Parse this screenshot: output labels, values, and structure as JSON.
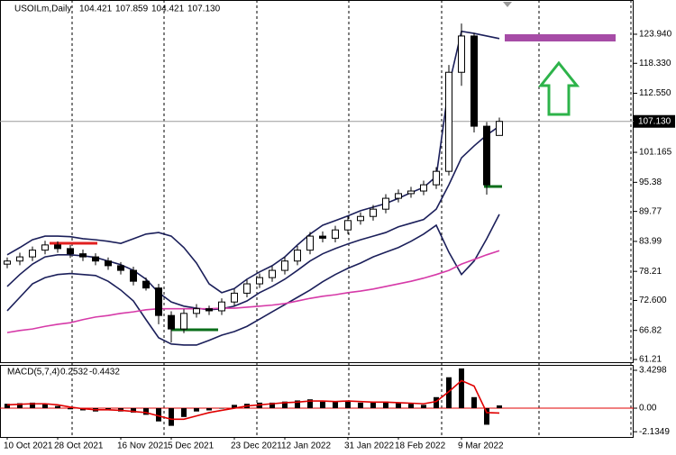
{
  "chart_data": [
    {
      "type": "candlestick",
      "title": "USOILm,Daily",
      "header_values": [
        104.421,
        107.859,
        104.421,
        {
          "value": 107.13,
          "label": "107.130"
        }
      ],
      "categories": [
        "10 Oct 2021",
        null,
        null,
        null,
        "28 Oct 2021",
        null,
        null,
        null,
        null,
        "16 Nov 2021",
        null,
        null,
        null,
        "5 Dec 2021",
        null,
        null,
        null,
        null,
        "23 Dec 2021",
        null,
        null,
        null,
        "12 Jan 2022",
        null,
        null,
        null,
        null,
        "31 Jan 2022",
        null,
        null,
        null,
        "18 Feb 2022",
        null,
        null,
        null,
        null,
        "9 Mar 2022",
        null,
        null,
        null
      ],
      "open": [
        79.6,
        80.2,
        81.0,
        82.3,
        83.3,
        82.6,
        81.6,
        81.0,
        80.2,
        79.3,
        78.4,
        76.3,
        75.0,
        69.7,
        67.1,
        70.1,
        71.0,
        70.6,
        72.3,
        74.0,
        75.8,
        77.0,
        78.4,
        80.2,
        82.3,
        85.0,
        84.6,
        86.2,
        88.0,
        88.8,
        90.2,
        92.3,
        93.2,
        93.7,
        94.9,
        97.5,
        116.6,
        123.6,
        106.2,
        104.421
      ],
      "high": [
        80.9,
        81.8,
        83.0,
        84.1,
        84.0,
        83.3,
        82.4,
        81.7,
        80.9,
        80.0,
        79.1,
        77.0,
        75.8,
        70.5,
        70.9,
        71.9,
        71.6,
        73.0,
        74.8,
        76.6,
        77.8,
        79.2,
        81.0,
        83.1,
        85.8,
        85.9,
        87.0,
        88.8,
        89.6,
        91.0,
        93.1,
        94.0,
        94.5,
        95.7,
        98.3,
        118.0,
        126.0,
        124.2,
        107.0,
        107.859
      ],
      "low": [
        78.8,
        79.4,
        80.2,
        81.5,
        81.8,
        80.8,
        80.2,
        79.4,
        78.5,
        77.6,
        75.5,
        74.5,
        68.0,
        64.5,
        66.3,
        69.3,
        69.8,
        69.8,
        71.5,
        73.2,
        75.0,
        76.2,
        77.6,
        79.4,
        81.5,
        83.8,
        83.8,
        85.4,
        87.2,
        88.0,
        89.4,
        91.5,
        92.4,
        92.9,
        94.1,
        96.7,
        114.0,
        105.0,
        93.0,
        104.421
      ],
      "close": [
        80.2,
        81.0,
        82.3,
        83.3,
        82.6,
        81.6,
        81.0,
        80.2,
        79.3,
        78.4,
        76.3,
        75.0,
        69.7,
        67.1,
        70.1,
        71.0,
        70.6,
        72.3,
        74.0,
        75.8,
        77.0,
        78.4,
        80.2,
        82.3,
        85.0,
        84.6,
        86.2,
        88.0,
        88.8,
        90.2,
        92.3,
        93.2,
        93.7,
        94.9,
        97.5,
        116.6,
        123.6,
        106.2,
        94.9,
        107.13
      ],
      "candle_color": "#000000",
      "overlays": [
        {
          "color": "#1b1f5a",
          "values": [
            81.4,
            82.8,
            84.3,
            85.0,
            85.0,
            84.9,
            84.5,
            84.3,
            84.0,
            83.6,
            84.5,
            85.4,
            85.7,
            85.0,
            82.8,
            79.8,
            75.8,
            74.1,
            74.9,
            76.7,
            78.1,
            79.3,
            81.0,
            83.3,
            85.4,
            87.1,
            88.0,
            88.9,
            89.9,
            90.6,
            91.3,
            92.3,
            93.4,
            94.4,
            96.5,
            114.0,
            124.5,
            124.1,
            123.6,
            123.1
          ]
        },
        {
          "color": "#1b1f5a",
          "values": [
            75.3,
            77.6,
            79.6,
            81.0,
            81.4,
            81.4,
            81.2,
            80.9,
            80.2,
            79.5,
            78.4,
            76.7,
            74.1,
            72.3,
            71.5,
            71.1,
            70.8,
            71.0,
            71.5,
            72.5,
            74.1,
            75.3,
            76.7,
            78.4,
            80.2,
            81.6,
            82.6,
            83.5,
            84.3,
            85.0,
            85.7,
            86.8,
            87.5,
            88.2,
            90.2,
            94.9,
            100.1,
            102.4,
            104.5,
            106.2
          ]
        },
        {
          "color": "#1b1f5a",
          "values": [
            70.6,
            73.2,
            75.8,
            77.0,
            77.6,
            77.8,
            77.6,
            77.4,
            76.3,
            74.6,
            72.5,
            68.9,
            65.4,
            64.2,
            64.0,
            64.0,
            64.9,
            65.9,
            66.6,
            67.6,
            69.0,
            70.4,
            71.8,
            73.2,
            74.6,
            76.2,
            77.6,
            78.8,
            79.8,
            81.0,
            81.9,
            82.8,
            84.0,
            85.4,
            87.1,
            81.9,
            77.6,
            80.2,
            84.5,
            89.2
          ]
        },
        {
          "color": "#d63aa8",
          "values": [
            66.4,
            66.8,
            67.1,
            67.6,
            68.0,
            68.3,
            68.9,
            69.4,
            69.7,
            70.1,
            70.4,
            70.8,
            71.0,
            71.0,
            71.0,
            71.0,
            71.0,
            71.1,
            71.1,
            71.3,
            71.5,
            71.7,
            72.0,
            72.5,
            73.0,
            73.4,
            73.7,
            74.1,
            74.4,
            74.8,
            75.3,
            75.8,
            76.3,
            76.9,
            77.6,
            78.4,
            79.6,
            80.5,
            81.4,
            82.2
          ]
        }
      ],
      "current_price": {
        "value": 107.13,
        "label": "107.130"
      },
      "ylim": [
        60.69,
        130.54
      ],
      "yticks": [
        {
          "value": 123.94,
          "label": "123.940"
        },
        {
          "value": 118.33,
          "label": "118.330"
        },
        {
          "value": 112.55,
          "label": "112.550"
        },
        101.165,
        95.38,
        89.77,
        83.99,
        78.21,
        {
          "value": 72.6,
          "label": "72.600"
        },
        66.82,
        61.21
      ]
    },
    {
      "type": "bar",
      "title": "MACD(5,7,4)",
      "header_values": [
        0.2532,
        -0.4432
      ],
      "values": [
        0.4,
        0.45,
        0.5,
        0.4,
        0.2,
        -0.1,
        -0.2,
        -0.3,
        -0.1,
        -0.3,
        -0.4,
        -0.6,
        -1.2,
        -1.6,
        -0.8,
        -0.3,
        -0.2,
        0.0,
        0.3,
        0.4,
        0.5,
        0.5,
        0.6,
        0.7,
        0.8,
        0.6,
        0.6,
        0.7,
        0.5,
        0.5,
        0.6,
        0.5,
        0.4,
        0.3,
        1.0,
        2.8,
        3.6,
        1.0,
        -1.5,
        0.2532
      ],
      "color": "#000000",
      "series": [
        {
          "type": "line",
          "color": "#e00000",
          "values": [
            0.3,
            0.35,
            0.4,
            0.4,
            0.3,
            0.1,
            -0.05,
            -0.15,
            -0.15,
            -0.2,
            -0.3,
            -0.4,
            -0.7,
            -1.0,
            -1.0,
            -0.7,
            -0.4,
            -0.2,
            0.0,
            0.2,
            0.3,
            0.4,
            0.5,
            0.55,
            0.65,
            0.65,
            0.6,
            0.65,
            0.6,
            0.55,
            0.55,
            0.5,
            0.45,
            0.4,
            0.6,
            1.5,
            2.5,
            2.0,
            -0.4,
            -0.4432
          ]
        }
      ],
      "zero_color": "#e00000",
      "ylim": [
        -2.61,
        3.92
      ],
      "yticks": [
        3.4298,
        {
          "value": 0,
          "label": "0.00"
        },
        -2.1349
      ]
    }
  ]
}
